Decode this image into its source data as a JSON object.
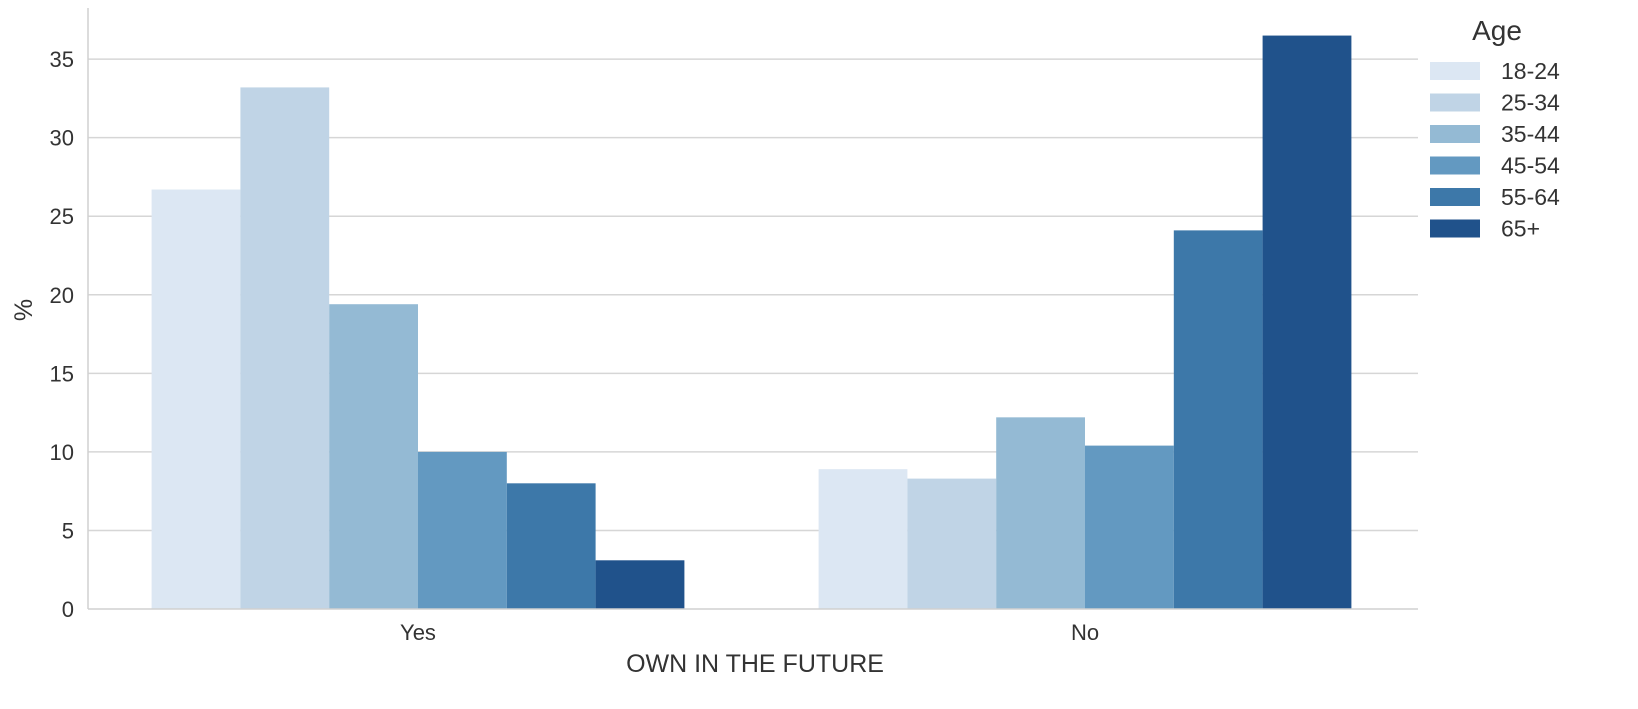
{
  "chart_data": {
    "type": "bar",
    "title": "",
    "xlabel": "OWN IN THE FUTURE",
    "ylabel": "%",
    "categories": [
      "Yes",
      "No"
    ],
    "ylim": [
      0,
      38
    ],
    "yticks": [
      0,
      5,
      10,
      15,
      20,
      25,
      30,
      35
    ],
    "grid": "horizontal",
    "legend": {
      "title": "Age",
      "placement": "right"
    },
    "series": [
      {
        "name": "18-24",
        "color": "#dce7f3",
        "values": [
          26.7,
          8.9
        ]
      },
      {
        "name": "25-34",
        "color": "#c0d4e6",
        "values": [
          33.2,
          8.3
        ]
      },
      {
        "name": "35-44",
        "color": "#94bad4",
        "values": [
          19.4,
          12.2
        ]
      },
      {
        "name": "45-54",
        "color": "#6399c1",
        "values": [
          10.0,
          10.4
        ]
      },
      {
        "name": "55-64",
        "color": "#3d78a9",
        "values": [
          8.0,
          24.1
        ]
      },
      {
        "name": "65+",
        "color": "#20528b",
        "values": [
          3.1,
          36.5
        ]
      }
    ]
  }
}
